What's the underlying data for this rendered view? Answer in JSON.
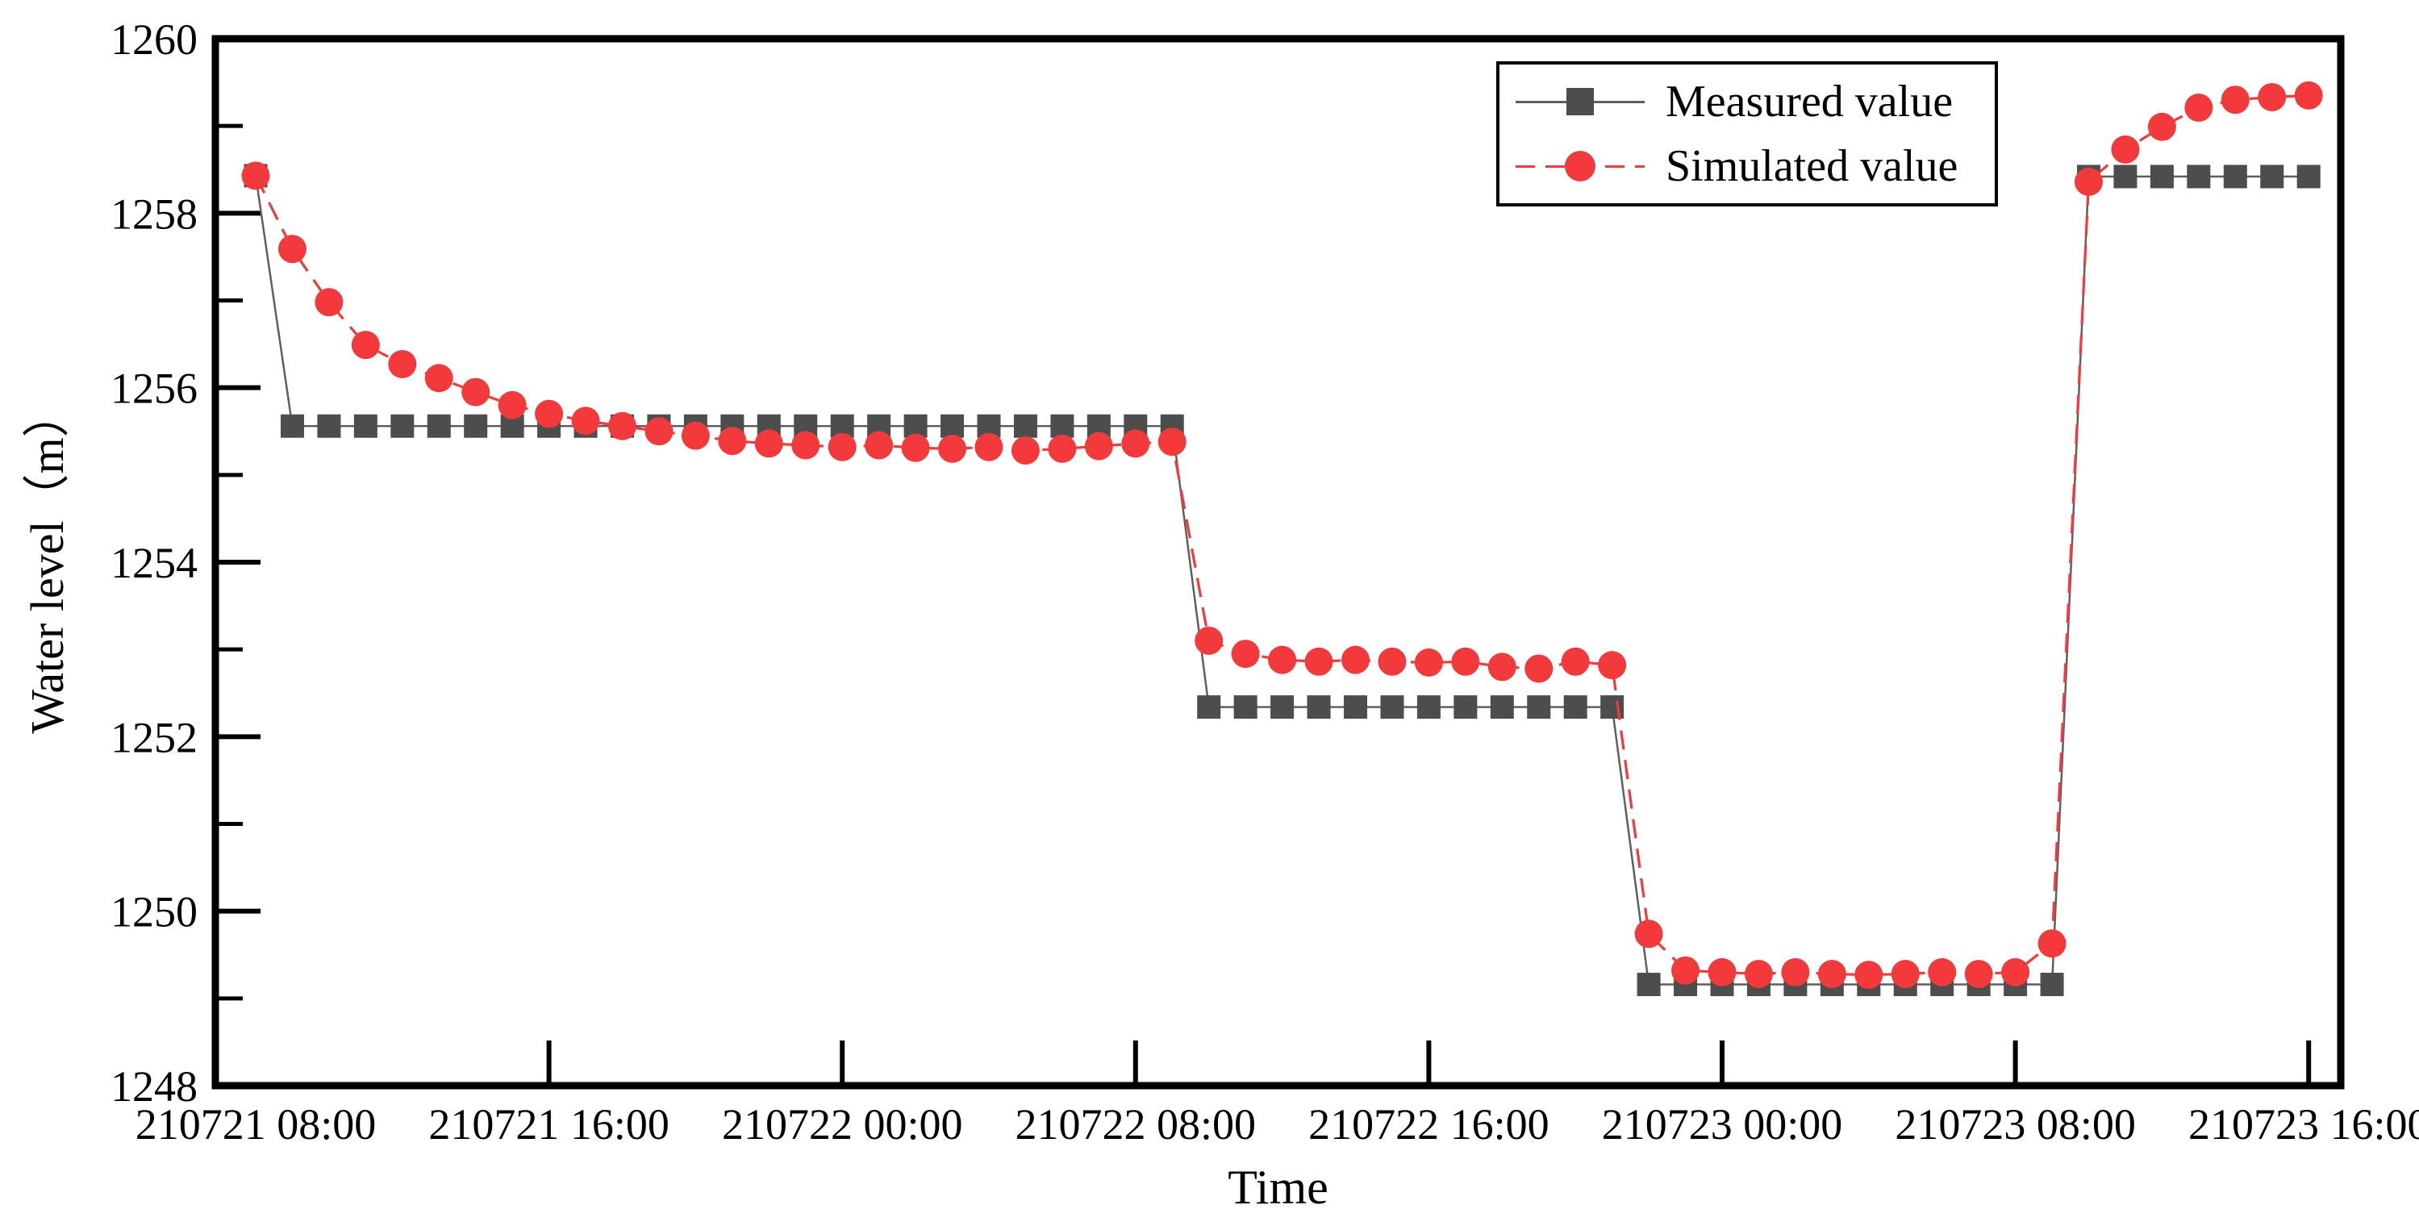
{
  "figure": {
    "background": "#ffffff",
    "axis_color": "#000000"
  },
  "chart_data": {
    "type": "line",
    "title": "",
    "xlabel": "Time",
    "ylabel": "Water level（m）",
    "ylim": [
      1248,
      1260
    ],
    "y_major_ticks": [
      1248,
      1250,
      1252,
      1254,
      1256,
      1258,
      1260
    ],
    "y_minor_ticks": [
      1249,
      1251,
      1253,
      1255,
      1257,
      1259
    ],
    "grid": "off",
    "legend_position": "top-right",
    "x_tick_hours": [
      0,
      8,
      16,
      24,
      32,
      40,
      48,
      56
    ],
    "x_tick_labels": [
      "210721  08:00",
      "210721  16:00",
      "210722  00:00",
      "210722  08:00",
      "210722  16:00",
      "210723  00:00",
      "210723  08:00",
      "210723  16:00"
    ],
    "times": [
      "210721 08:00",
      "210721 09:00",
      "210721 10:00",
      "210721 11:00",
      "210721 12:00",
      "210721 13:00",
      "210721 14:00",
      "210721 15:00",
      "210721 16:00",
      "210721 17:00",
      "210721 18:00",
      "210721 19:00",
      "210721 20:00",
      "210721 21:00",
      "210721 22:00",
      "210721 23:00",
      "210722 00:00",
      "210722 01:00",
      "210722 02:00",
      "210722 03:00",
      "210722 04:00",
      "210722 05:00",
      "210722 06:00",
      "210722 07:00",
      "210722 08:00",
      "210722 09:00",
      "210722 10:00",
      "210722 11:00",
      "210722 12:00",
      "210722 13:00",
      "210722 14:00",
      "210722 15:00",
      "210722 16:00",
      "210722 17:00",
      "210722 18:00",
      "210722 19:00",
      "210722 20:00",
      "210722 21:00",
      "210722 22:00",
      "210722 23:00",
      "210723 00:00",
      "210723 01:00",
      "210723 02:00",
      "210723 03:00",
      "210723 04:00",
      "210723 05:00",
      "210723 06:00",
      "210723 07:00",
      "210723 08:00",
      "210723 09:00",
      "210723 10:00",
      "210723 11:00",
      "210723 12:00",
      "210723 13:00",
      "210723 14:00",
      "210723 15:00",
      "210723 16:00"
    ],
    "series": [
      {
        "name": "Measured value",
        "marker": "square",
        "marker_color": "#4d4d4d",
        "line_color": "#5f5f5f",
        "line_style": "solid",
        "values": [
          1258.43,
          1255.56,
          1255.56,
          1255.56,
          1255.56,
          1255.56,
          1255.56,
          1255.56,
          1255.56,
          1255.56,
          1255.56,
          1255.56,
          1255.56,
          1255.56,
          1255.56,
          1255.56,
          1255.56,
          1255.56,
          1255.56,
          1255.56,
          1255.56,
          1255.56,
          1255.56,
          1255.56,
          1255.56,
          1255.56,
          1252.34,
          1252.34,
          1252.34,
          1252.34,
          1252.34,
          1252.34,
          1252.34,
          1252.34,
          1252.34,
          1252.34,
          1252.34,
          1252.34,
          1249.16,
          1249.16,
          1249.16,
          1249.16,
          1249.16,
          1249.16,
          1249.16,
          1249.16,
          1249.16,
          1249.16,
          1249.16,
          1249.16,
          1258.42,
          1258.42,
          1258.42,
          1258.42,
          1258.42,
          1258.42,
          1258.42
        ]
      },
      {
        "name": "Simulated value",
        "marker": "circle",
        "marker_color": "#f2393c",
        "line_color": "#f2393c",
        "line_style": "dashed",
        "values": [
          1258.43,
          1257.59,
          1256.98,
          1256.49,
          1256.27,
          1256.11,
          1255.95,
          1255.8,
          1255.7,
          1255.62,
          1255.56,
          1255.5,
          1255.45,
          1255.39,
          1255.36,
          1255.34,
          1255.32,
          1255.34,
          1255.31,
          1255.3,
          1255.32,
          1255.28,
          1255.3,
          1255.33,
          1255.36,
          1255.38,
          1253.1,
          1252.95,
          1252.88,
          1252.86,
          1252.88,
          1252.86,
          1252.85,
          1252.86,
          1252.8,
          1252.78,
          1252.86,
          1252.82,
          1249.74,
          1249.32,
          1249.3,
          1249.28,
          1249.3,
          1249.28,
          1249.27,
          1249.28,
          1249.3,
          1249.28,
          1249.3,
          1249.63,
          1258.36,
          1258.73,
          1258.99,
          1259.21,
          1259.3,
          1259.33,
          1259.35
        ]
      }
    ]
  }
}
